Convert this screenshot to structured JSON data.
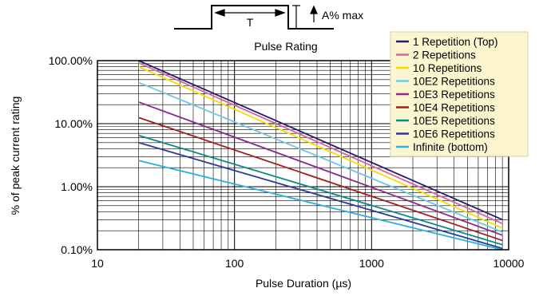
{
  "chart_data": {
    "type": "line",
    "title": "Pulse Rating",
    "xlabel": "Pulse Duration (µs)",
    "ylabel": "% of peak current rating",
    "x_scale": "log",
    "y_scale": "log",
    "xlim": [
      10,
      10000
    ],
    "ylim": [
      0.1,
      100
    ],
    "grid": true,
    "legend_position": "top-right",
    "x_ticks": [
      {
        "value": 10,
        "label": "10"
      },
      {
        "value": 100,
        "label": "100"
      },
      {
        "value": 1000,
        "label": "1000"
      },
      {
        "value": 10000,
        "label": "10000"
      }
    ],
    "y_ticks": [
      {
        "value": 0.1,
        "label": "0.10%"
      },
      {
        "value": 1,
        "label": "1.00%"
      },
      {
        "value": 10,
        "label": "10.00%"
      },
      {
        "value": 100,
        "label": "100.00%"
      }
    ],
    "pulse_diagram": {
      "width_label": "T",
      "amplitude_label": "A% max"
    },
    "series": [
      {
        "name": "1 Repetition (Top)",
        "color": "#1f1f6e",
        "x": [
          20,
          9000
        ],
        "y": [
          100,
          0.3
        ]
      },
      {
        "name": "2 Repetitions",
        "color": "#e0609a",
        "x": [
          20,
          9000
        ],
        "y": [
          92,
          0.26
        ]
      },
      {
        "name": "10 Repetitions",
        "color": "#f0e000",
        "x": [
          20,
          9000
        ],
        "y": [
          80,
          0.22
        ]
      },
      {
        "name": "10E2 Repetitions",
        "color": "#6ec8e0",
        "x": [
          20,
          9000
        ],
        "y": [
          45,
          0.19
        ]
      },
      {
        "name": "10E3 Repetitions",
        "color": "#8a2a8a",
        "x": [
          20,
          9000
        ],
        "y": [
          22,
          0.17
        ]
      },
      {
        "name": "10E4 Repetitions",
        "color": "#a01e1e",
        "x": [
          20,
          9000
        ],
        "y": [
          12.5,
          0.14
        ]
      },
      {
        "name": "10E5 Repetitions",
        "color": "#0a8a8a",
        "x": [
          20,
          9000
        ],
        "y": [
          6.5,
          0.12
        ]
      },
      {
        "name": "10E6 Repetitions",
        "color": "#2a3a9a",
        "x": [
          20,
          9000
        ],
        "y": [
          5,
          0.105
        ]
      },
      {
        "name": "Infinite (bottom)",
        "color": "#2ab0e0",
        "x": [
          20,
          9000
        ],
        "y": [
          2.6,
          0.1
        ]
      }
    ]
  }
}
